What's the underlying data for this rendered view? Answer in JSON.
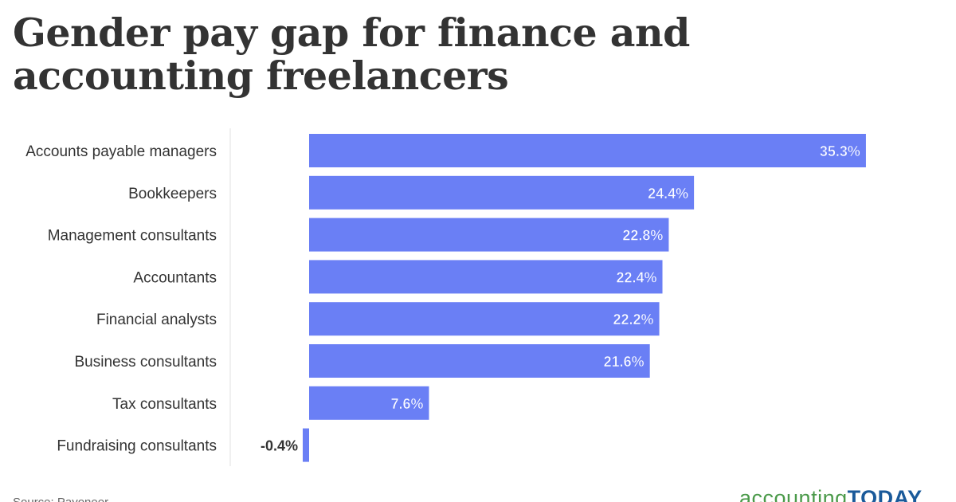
{
  "title": "Gender pay gap for finance and accounting freelancers",
  "source": "Source: Payoneer",
  "logo": {
    "part1": "accounting",
    "part2": "TODAY",
    "colors": {
      "part1": "#4b9a4a",
      "part2": "#1a5a9a"
    }
  },
  "colors": {
    "bar": "#6a7ff5",
    "label_on_bar": "#ffffff",
    "label_outside": "#333333",
    "axis_line": "#e0e0e0"
  },
  "chart_data": {
    "type": "bar",
    "orientation": "horizontal",
    "categories": [
      "Accounts payable managers",
      "Bookkeepers",
      "Management consultants",
      "Accountants",
      "Financial analysts",
      "Business consultants",
      "Tax consultants",
      "Fundraising consultants"
    ],
    "values": [
      35.3,
      24.4,
      22.8,
      22.4,
      22.2,
      21.6,
      7.6,
      -0.4
    ],
    "value_labels": [
      "35.3%",
      "24.4%",
      "22.8%",
      "22.4%",
      "22.2%",
      "21.6%",
      "7.6%",
      "-0.4%"
    ],
    "value_unit": "%",
    "xlim": [
      -0.4,
      35.3
    ],
    "grid": false,
    "legend": "none"
  }
}
